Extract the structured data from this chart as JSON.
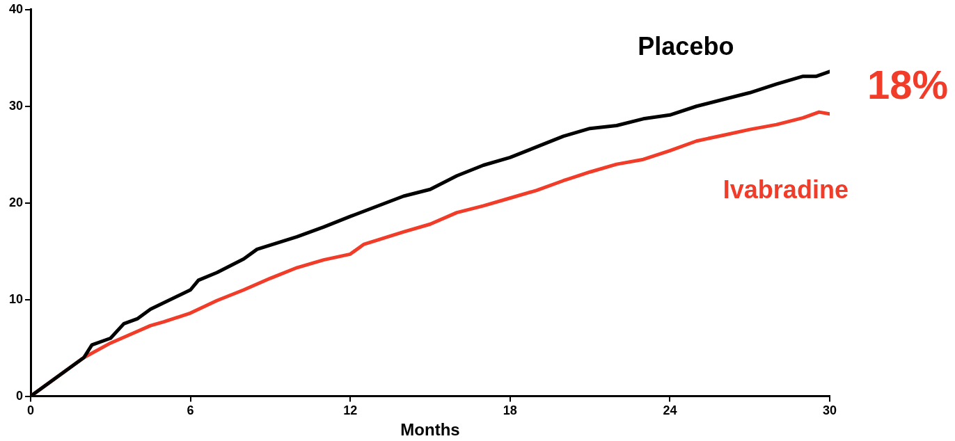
{
  "chart_data": {
    "type": "line",
    "xlabel": "Months",
    "xlim": [
      0,
      30
    ],
    "xticks": [
      0,
      6,
      12,
      18,
      24,
      30
    ],
    "ylim": [
      0,
      40
    ],
    "yticks": [
      0,
      10,
      20,
      30,
      40
    ],
    "grid": false,
    "legend": false,
    "marker": "none",
    "line_style": "solid",
    "annotations": [
      "18%"
    ],
    "series": [
      {
        "name": "Placebo",
        "color": "#000000",
        "x": [
          0,
          2,
          2.3,
          3,
          3.5,
          4,
          4.5,
          6,
          6.3,
          7,
          7.5,
          8,
          8.5,
          10,
          11,
          12,
          14,
          15,
          16,
          17,
          18,
          19,
          20,
          21,
          22,
          23,
          24,
          25,
          26,
          27,
          28,
          29,
          29.5,
          30
        ],
        "values": [
          0,
          4,
          5.3,
          6,
          7.5,
          8,
          9,
          11,
          12,
          12.8,
          13.5,
          14.2,
          15.2,
          16.5,
          17.5,
          18.6,
          20.7,
          21.4,
          22.8,
          23.9,
          24.7,
          25.8,
          26.9,
          27.7,
          28,
          28.7,
          29.1,
          30,
          30.7,
          31.4,
          32.3,
          33.1,
          33.1,
          33.6
        ]
      },
      {
        "name": "Ivabradine",
        "color": "#f03c28",
        "x": [
          0,
          2,
          3,
          4,
          4.5,
          5,
          6,
          7,
          8,
          9,
          10,
          11,
          12,
          12.5,
          14,
          15,
          16,
          17,
          18,
          19,
          20,
          21,
          22,
          23,
          24,
          25,
          26,
          27,
          28,
          29,
          29.6,
          30
        ],
        "values": [
          0,
          4,
          5.5,
          6.7,
          7.3,
          7.7,
          8.6,
          9.9,
          11,
          12.2,
          13.3,
          14.1,
          14.7,
          15.7,
          17,
          17.8,
          19,
          19.7,
          20.5,
          21.3,
          22.3,
          23.2,
          24,
          24.5,
          25.4,
          26.4,
          27,
          27.6,
          28.1,
          28.8,
          29.4,
          29.2
        ]
      }
    ]
  }
}
